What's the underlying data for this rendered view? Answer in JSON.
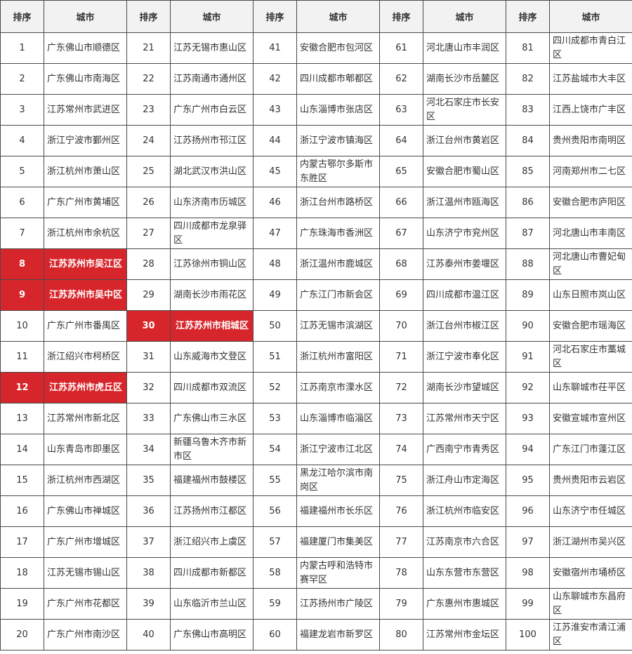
{
  "header": {
    "rank_label": "排序",
    "city_label": "城市"
  },
  "highlight_color": "#d7262b",
  "rows": [
    [
      {
        "rank": "1",
        "city": "广东佛山市顺德区"
      },
      {
        "rank": "21",
        "city": "江苏无锡市惠山区"
      },
      {
        "rank": "41",
        "city": "安徽合肥市包河区"
      },
      {
        "rank": "61",
        "city": "河北唐山市丰润区"
      },
      {
        "rank": "81",
        "city": "四川成都市青白江区"
      }
    ],
    [
      {
        "rank": "2",
        "city": "广东佛山市南海区"
      },
      {
        "rank": "22",
        "city": "江苏南通市通州区"
      },
      {
        "rank": "42",
        "city": "四川成都市郫都区"
      },
      {
        "rank": "62",
        "city": "湖南长沙市岳麓区"
      },
      {
        "rank": "82",
        "city": "江苏盐城市大丰区"
      }
    ],
    [
      {
        "rank": "3",
        "city": "江苏常州市武进区"
      },
      {
        "rank": "23",
        "city": "广东广州市白云区"
      },
      {
        "rank": "43",
        "city": "山东淄博市张店区"
      },
      {
        "rank": "63",
        "city": "河北石家庄市长安区"
      },
      {
        "rank": "83",
        "city": "江西上饶市广丰区"
      }
    ],
    [
      {
        "rank": "4",
        "city": "浙江宁波市鄞州区"
      },
      {
        "rank": "24",
        "city": "江苏扬州市邗江区"
      },
      {
        "rank": "44",
        "city": "浙江宁波市镇海区"
      },
      {
        "rank": "64",
        "city": "浙江台州市黄岩区"
      },
      {
        "rank": "84",
        "city": "贵州贵阳市南明区"
      }
    ],
    [
      {
        "rank": "5",
        "city": "浙江杭州市萧山区"
      },
      {
        "rank": "25",
        "city": "湖北武汉市洪山区"
      },
      {
        "rank": "45",
        "city": "内蒙古鄂尔多斯市东胜区"
      },
      {
        "rank": "65",
        "city": "安徽合肥市蜀山区"
      },
      {
        "rank": "85",
        "city": "河南郑州市二七区"
      }
    ],
    [
      {
        "rank": "6",
        "city": "广东广州市黄埔区"
      },
      {
        "rank": "26",
        "city": "山东济南市历城区"
      },
      {
        "rank": "46",
        "city": "浙江台州市路桥区"
      },
      {
        "rank": "66",
        "city": "浙江温州市瓯海区"
      },
      {
        "rank": "86",
        "city": "安徽合肥市庐阳区"
      }
    ],
    [
      {
        "rank": "7",
        "city": "浙江杭州市余杭区"
      },
      {
        "rank": "27",
        "city": "四川成都市龙泉驿区"
      },
      {
        "rank": "47",
        "city": "广东珠海市香洲区"
      },
      {
        "rank": "67",
        "city": "山东济宁市兖州区"
      },
      {
        "rank": "87",
        "city": "河北唐山市丰南区"
      }
    ],
    [
      {
        "rank": "8",
        "city": "江苏苏州市吴江区",
        "highlight": true
      },
      {
        "rank": "28",
        "city": "江苏徐州市铜山区"
      },
      {
        "rank": "48",
        "city": "浙江温州市鹿城区"
      },
      {
        "rank": "68",
        "city": "江苏泰州市姜堰区"
      },
      {
        "rank": "88",
        "city": "河北唐山市曹妃甸区"
      }
    ],
    [
      {
        "rank": "9",
        "city": "江苏苏州市吴中区",
        "highlight": true
      },
      {
        "rank": "29",
        "city": "湖南长沙市雨花区"
      },
      {
        "rank": "49",
        "city": "广东江门市新会区"
      },
      {
        "rank": "69",
        "city": "四川成都市温江区"
      },
      {
        "rank": "89",
        "city": "山东日照市岚山区"
      }
    ],
    [
      {
        "rank": "10",
        "city": "广东广州市番禺区"
      },
      {
        "rank": "30",
        "city": "江苏苏州市相城区",
        "highlight": true
      },
      {
        "rank": "50",
        "city": "江苏无锡市滨湖区"
      },
      {
        "rank": "70",
        "city": "浙江台州市椒江区"
      },
      {
        "rank": "90",
        "city": "安徽合肥市瑶海区"
      }
    ],
    [
      {
        "rank": "11",
        "city": "浙江绍兴市柯桥区"
      },
      {
        "rank": "31",
        "city": "山东威海市文登区"
      },
      {
        "rank": "51",
        "city": "浙江杭州市富阳区"
      },
      {
        "rank": "71",
        "city": "浙江宁波市奉化区"
      },
      {
        "rank": "91",
        "city": "河北石家庄市藁城区"
      }
    ],
    [
      {
        "rank": "12",
        "city": "江苏苏州市虎丘区",
        "highlight": true
      },
      {
        "rank": "32",
        "city": "四川成都市双流区"
      },
      {
        "rank": "52",
        "city": "江苏南京市溧水区"
      },
      {
        "rank": "72",
        "city": "湖南长沙市望城区"
      },
      {
        "rank": "92",
        "city": "山东聊城市茌平区"
      }
    ],
    [
      {
        "rank": "13",
        "city": "江苏常州市新北区"
      },
      {
        "rank": "33",
        "city": "广东佛山市三水区"
      },
      {
        "rank": "53",
        "city": "山东淄博市临淄区"
      },
      {
        "rank": "73",
        "city": "江苏常州市天宁区"
      },
      {
        "rank": "93",
        "city": "安徽宣城市宣州区"
      }
    ],
    [
      {
        "rank": "14",
        "city": "山东青岛市即墨区"
      },
      {
        "rank": "34",
        "city": "新疆乌鲁木齐市新市区"
      },
      {
        "rank": "54",
        "city": "浙江宁波市江北区"
      },
      {
        "rank": "74",
        "city": "广西南宁市青秀区"
      },
      {
        "rank": "94",
        "city": "广东江门市蓬江区"
      }
    ],
    [
      {
        "rank": "15",
        "city": "浙江杭州市西湖区"
      },
      {
        "rank": "35",
        "city": "福建福州市鼓楼区"
      },
      {
        "rank": "55",
        "city": "黑龙江哈尔滨市南岗区"
      },
      {
        "rank": "75",
        "city": "浙江舟山市定海区"
      },
      {
        "rank": "95",
        "city": "贵州贵阳市云岩区"
      }
    ],
    [
      {
        "rank": "16",
        "city": "广东佛山市禅城区"
      },
      {
        "rank": "36",
        "city": "江苏扬州市江都区"
      },
      {
        "rank": "56",
        "city": "福建福州市长乐区"
      },
      {
        "rank": "76",
        "city": "浙江杭州市临安区"
      },
      {
        "rank": "96",
        "city": "山东济宁市任城区"
      }
    ],
    [
      {
        "rank": "17",
        "city": "广东广州市增城区"
      },
      {
        "rank": "37",
        "city": "浙江绍兴市上虞区"
      },
      {
        "rank": "57",
        "city": "福建厦门市集美区"
      },
      {
        "rank": "77",
        "city": "江苏南京市六合区"
      },
      {
        "rank": "97",
        "city": "浙江湖州市吴兴区"
      }
    ],
    [
      {
        "rank": "18",
        "city": "江苏无锡市锡山区"
      },
      {
        "rank": "38",
        "city": "四川成都市新都区"
      },
      {
        "rank": "58",
        "city": "内蒙古呼和浩特市赛罕区"
      },
      {
        "rank": "78",
        "city": "山东东营市东营区"
      },
      {
        "rank": "98",
        "city": "安徽宿州市埇桥区"
      }
    ],
    [
      {
        "rank": "19",
        "city": "广东广州市花都区"
      },
      {
        "rank": "39",
        "city": "山东临沂市兰山区"
      },
      {
        "rank": "59",
        "city": "江苏扬州市广陵区"
      },
      {
        "rank": "79",
        "city": "广东惠州市惠城区"
      },
      {
        "rank": "99",
        "city": "山东聊城市东昌府区"
      }
    ],
    [
      {
        "rank": "20",
        "city": "广东广州市南沙区"
      },
      {
        "rank": "40",
        "city": "广东佛山市高明区"
      },
      {
        "rank": "60",
        "city": "福建龙岩市新罗区"
      },
      {
        "rank": "80",
        "city": "江苏常州市金坛区"
      },
      {
        "rank": "100",
        "city": "江苏淮安市清江浦区"
      }
    ]
  ]
}
